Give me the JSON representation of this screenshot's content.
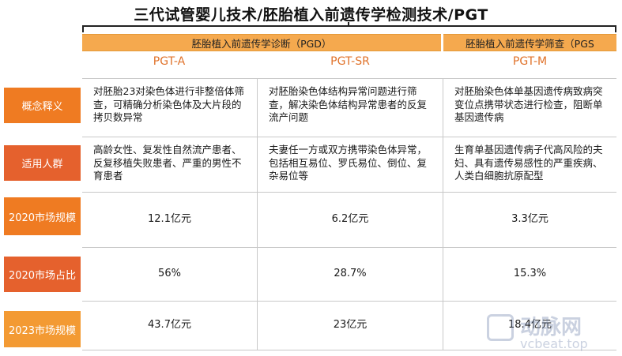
{
  "title": "三代试管婴儿技术/胚胎植入前遗传学检测技术/PGT",
  "groups": {
    "pgd": "胚胎植入前遗传学诊断（PGD）",
    "pgs": "胚胎植入前遗传学筛查（PGS"
  },
  "columns": {
    "a": "PGT-A",
    "sr": "PGT-SR",
    "m": "PGT-M"
  },
  "rows": {
    "concept": {
      "label": "概念释义",
      "a": "对胚胎23对染色体进行非整倍体筛查，可精确分析染色体及大片段的拷贝数异常",
      "sr": "对胚胎染色体结构异常问题进行筛查，解决染色体结构异常患者的反复流产问题",
      "m": "对胚胎染色体单基因遗传病致病突变位点携带状态进行检查，阻断单基因遗传病"
    },
    "population": {
      "label": "适用人群",
      "a": "高龄女性、复发性自然流产患者、反复移植失败患者、严重的男性不育患者",
      "sr": "夫妻任一方或双方携带染色体异常，包括相互易位、罗氏易位、倒位、复杂易位等",
      "m": "生育单基因遗传病子代高风险的夫妇、具有遗传易感性的严重疾病、人类白细胞抗原配型"
    },
    "market2020": {
      "label": "2020市场规模",
      "a": "12.1亿元",
      "sr": "6.2亿元",
      "m": "3.3亿元"
    },
    "share2020": {
      "label": "2020市场占比",
      "a": "56%",
      "sr": "28.7%",
      "m": "15.3%"
    },
    "market2023": {
      "label": "2023市场规模",
      "a": "43.7亿元",
      "sr": "23亿元",
      "m": "18.4亿元"
    }
  },
  "watermark": {
    "logo_icon": "vb-logo-icon",
    "name": "动脉网",
    "url": "vcbeat.top"
  }
}
